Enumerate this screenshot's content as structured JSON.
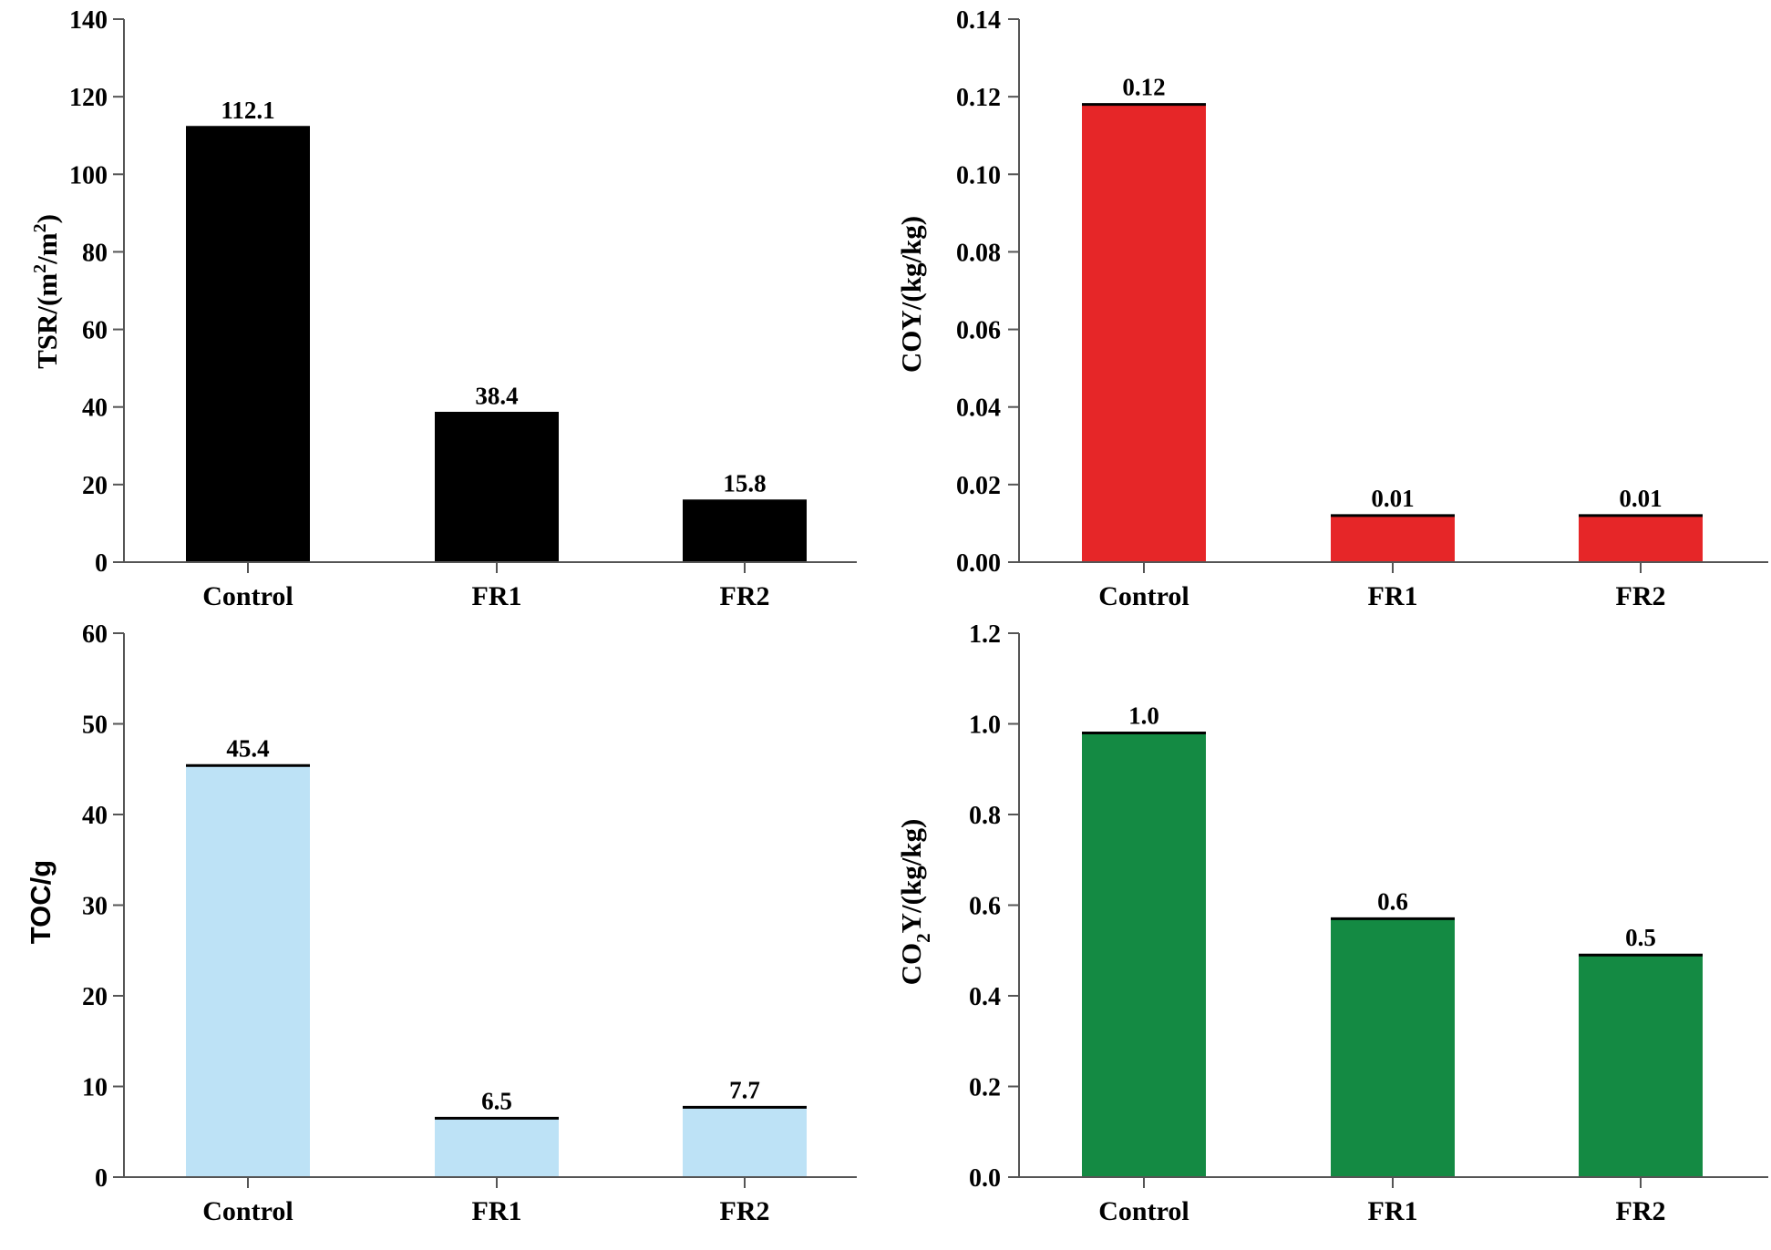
{
  "chart_data": [
    {
      "type": "bar",
      "id": "tsr",
      "categories": [
        "Control",
        "FR1",
        "FR2"
      ],
      "values": [
        112.1,
        38.4,
        15.8
      ],
      "value_labels": [
        "112.1",
        "38.4",
        "15.8"
      ],
      "ylabel": "TSR/(m2/m2)",
      "ylabel_parts": {
        "a": "TSR/(m",
        "sup1": "2",
        "b": "/m",
        "sup2": "2",
        "c": ")"
      },
      "ylim": [
        0,
        140
      ],
      "yticks": [
        0,
        20,
        40,
        60,
        80,
        100,
        120,
        140
      ],
      "ytick_labels": [
        "0",
        "20",
        "40",
        "60",
        "80",
        "100",
        "120",
        "140"
      ],
      "color": "#000000"
    },
    {
      "type": "bar",
      "id": "coy",
      "categories": [
        "Control",
        "FR1",
        "FR2"
      ],
      "values": [
        0.118,
        0.012,
        0.012
      ],
      "value_labels": [
        "0.12",
        "0.01",
        "0.01"
      ],
      "ylabel": "COY/(kg/kg)",
      "ylim": [
        0,
        0.14
      ],
      "yticks": [
        0,
        0.02,
        0.04,
        0.06,
        0.08,
        0.1,
        0.12,
        0.14
      ],
      "ytick_labels": [
        "0.00",
        "0.02",
        "0.04",
        "0.06",
        "0.08",
        "0.10",
        "0.12",
        "0.14"
      ],
      "color": "#e62628"
    },
    {
      "type": "bar",
      "id": "toc",
      "categories": [
        "Control",
        "FR1",
        "FR2"
      ],
      "values": [
        45.4,
        6.5,
        7.7
      ],
      "value_labels": [
        "45.4",
        "6.5",
        "7.7"
      ],
      "ylabel": "TOC/g",
      "ylim": [
        0,
        60
      ],
      "yticks": [
        0,
        10,
        20,
        30,
        40,
        50,
        60
      ],
      "ytick_labels": [
        "0",
        "10",
        "20",
        "30",
        "40",
        "50",
        "60"
      ],
      "color": "#bde2f6"
    },
    {
      "type": "bar",
      "id": "co2y",
      "categories": [
        "Control",
        "FR1",
        "FR2"
      ],
      "values": [
        0.98,
        0.57,
        0.49
      ],
      "value_labels": [
        "1.0",
        "0.6",
        "0.5"
      ],
      "ylabel": "CO2Y/(kg/kg)",
      "ylabel_parts": {
        "a": "CO",
        "sub": "2",
        "b": "Y/(kg/kg)"
      },
      "ylim": [
        0,
        1.2
      ],
      "yticks": [
        0,
        0.2,
        0.4,
        0.6,
        0.8,
        1.0,
        1.2
      ],
      "ytick_labels": [
        "0.0",
        "0.2",
        "0.4",
        "0.6",
        "0.8",
        "1.0",
        "1.2"
      ],
      "color": "#148a43"
    }
  ]
}
